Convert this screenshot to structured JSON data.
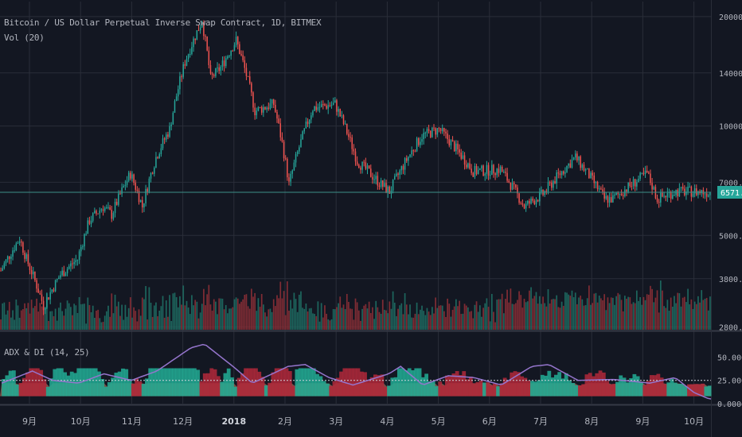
{
  "chart_data": {
    "type": "candlestick",
    "title": "Bitcoin / US Dollar Perpetual Inverse Swap Contract, 1D, BITMEX",
    "volume_label": "Vol (20)",
    "indicator_label": "ADX & DI (14, 25)",
    "last_price": "6571.0",
    "price_axis": {
      "scale": "log",
      "ticks": [
        "20000.0",
        "14000.0",
        "10000.0",
        "7000.0",
        "5000.0",
        "3800.0",
        "2800.0"
      ],
      "ylim": [
        2750,
        22000
      ]
    },
    "indicator_axis": {
      "ticks": [
        "50.0000",
        "25.0000",
        "0.0000"
      ],
      "ylim": [
        0,
        70
      ]
    },
    "time_axis": [
      "9月",
      "10月",
      "11月",
      "12月",
      "2018",
      "2月",
      "3月",
      "4月",
      "5月",
      "6月",
      "7月",
      "8月",
      "9月",
      "10月"
    ],
    "price_keypoints": [
      [
        "2017-08-21",
        4000
      ],
      [
        "2017-09-01",
        4900
      ],
      [
        "2017-09-05",
        4300
      ],
      [
        "2017-09-15",
        3200
      ],
      [
        "2017-09-25",
        3900
      ],
      [
        "2017-10-05",
        4300
      ],
      [
        "2017-10-12",
        5500
      ],
      [
        "2017-10-20",
        6000
      ],
      [
        "2017-10-25",
        5700
      ],
      [
        "2017-11-05",
        7400
      ],
      [
        "2017-11-12",
        6000
      ],
      [
        "2017-11-20",
        8200
      ],
      [
        "2017-11-28",
        9800
      ],
      [
        "2017-12-07",
        15000
      ],
      [
        "2017-12-17",
        19500
      ],
      [
        "2017-12-22",
        13500
      ],
      [
        "2017-12-28",
        14500
      ],
      [
        "2018-01-06",
        17200
      ],
      [
        "2018-01-17",
        11000
      ],
      [
        "2018-01-28",
        11500
      ],
      [
        "2018-02-06",
        6900
      ],
      [
        "2018-02-20",
        11200
      ],
      [
        "2018-03-05",
        11500
      ],
      [
        "2018-03-18",
        8000
      ],
      [
        "2018-04-01",
        6900
      ],
      [
        "2018-04-06",
        6600
      ],
      [
        "2018-04-25",
        9400
      ],
      [
        "2018-05-05",
        9800
      ],
      [
        "2018-05-25",
        7500
      ],
      [
        "2018-06-10",
        7600
      ],
      [
        "2018-06-24",
        6000
      ],
      [
        "2018-07-05",
        6500
      ],
      [
        "2018-07-24",
        8200
      ],
      [
        "2018-08-10",
        6300
      ],
      [
        "2018-08-15",
        6300
      ],
      [
        "2018-09-04",
        7400
      ],
      [
        "2018-09-10",
        6300
      ],
      [
        "2018-09-20",
        6600
      ],
      [
        "2018-10-01",
        6600
      ],
      [
        "2018-10-10",
        6571
      ]
    ],
    "adx_keypoints": [
      [
        "2017-08-21",
        22
      ],
      [
        "2017-09-08",
        35
      ],
      [
        "2017-09-20",
        25
      ],
      [
        "2017-10-05",
        22
      ],
      [
        "2017-10-20",
        32
      ],
      [
        "2017-11-05",
        25
      ],
      [
        "2017-11-20",
        35
      ],
      [
        "2017-12-10",
        60
      ],
      [
        "2017-12-18",
        64
      ],
      [
        "2018-01-05",
        38
      ],
      [
        "2018-01-15",
        22
      ],
      [
        "2018-02-05",
        40
      ],
      [
        "2018-02-15",
        42
      ],
      [
        "2018-03-01",
        28
      ],
      [
        "2018-03-15",
        20
      ],
      [
        "2018-04-05",
        32
      ],
      [
        "2018-04-12",
        40
      ],
      [
        "2018-04-25",
        20
      ],
      [
        "2018-05-10",
        30
      ],
      [
        "2018-05-25",
        28
      ],
      [
        "2018-06-10",
        20
      ],
      [
        "2018-06-28",
        40
      ],
      [
        "2018-07-08",
        42
      ],
      [
        "2018-07-25",
        25
      ],
      [
        "2018-08-15",
        26
      ],
      [
        "2018-09-05",
        22
      ],
      [
        "2018-09-20",
        28
      ],
      [
        "2018-10-01",
        12
      ],
      [
        "2018-10-10",
        5
      ]
    ],
    "adx_threshold": 25,
    "colors": {
      "background": "#131722",
      "up": "#26a69a",
      "down": "#ef5350",
      "volume_up": "#1f6e64",
      "volume_down": "#8c2f36",
      "adx": "#9575cd",
      "di_plus_fill": "#22ab94",
      "di_minus_fill": "#b0283a",
      "base_fill": "#8d5a4e",
      "price_line": "#3d8f88",
      "grid": "#2a2e39",
      "text": "#b2b5be"
    }
  }
}
